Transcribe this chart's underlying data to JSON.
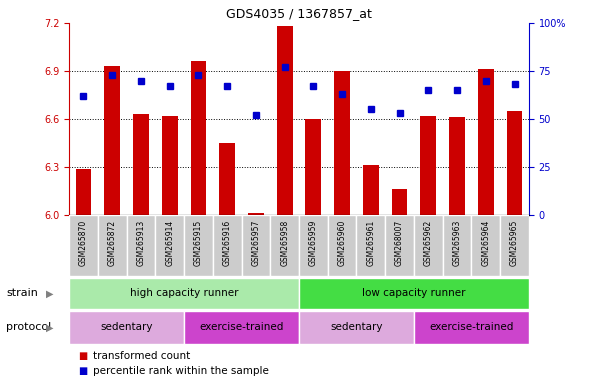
{
  "title": "GDS4035 / 1367857_at",
  "samples": [
    "GSM265870",
    "GSM265872",
    "GSM265913",
    "GSM265914",
    "GSM265915",
    "GSM265916",
    "GSM265957",
    "GSM265958",
    "GSM265959",
    "GSM265960",
    "GSM265961",
    "GSM268007",
    "GSM265962",
    "GSM265963",
    "GSM265964",
    "GSM265965"
  ],
  "bar_values": [
    6.29,
    6.93,
    6.63,
    6.62,
    6.96,
    6.45,
    6.01,
    7.18,
    6.6,
    6.9,
    6.31,
    6.16,
    6.62,
    6.61,
    6.91,
    6.65
  ],
  "dot_values": [
    62,
    73,
    70,
    67,
    73,
    67,
    52,
    77,
    67,
    63,
    55,
    53,
    65,
    65,
    70,
    68
  ],
  "ymin": 6.0,
  "ymax": 7.2,
  "yticks": [
    6.0,
    6.3,
    6.6,
    6.9,
    7.2
  ],
  "y2min": 0,
  "y2max": 100,
  "y2ticks": [
    0,
    25,
    50,
    75,
    100
  ],
  "bar_color": "#cc0000",
  "dot_color": "#0000cc",
  "strain_groups": [
    {
      "label": "high capacity runner",
      "start": 0,
      "end": 8,
      "color": "#aaeaaa"
    },
    {
      "label": "low capacity runner",
      "start": 8,
      "end": 16,
      "color": "#44dd44"
    }
  ],
  "protocol_groups": [
    {
      "label": "sedentary",
      "start": 0,
      "end": 4,
      "color": "#ddaadd"
    },
    {
      "label": "exercise-trained",
      "start": 4,
      "end": 8,
      "color": "#cc44cc"
    },
    {
      "label": "sedentary",
      "start": 8,
      "end": 12,
      "color": "#ddaadd"
    },
    {
      "label": "exercise-trained",
      "start": 12,
      "end": 16,
      "color": "#cc44cc"
    }
  ],
  "legend_items": [
    {
      "label": "transformed count",
      "color": "#cc0000"
    },
    {
      "label": "percentile rank within the sample",
      "color": "#0000cc"
    }
  ],
  "strain_label": "strain",
  "protocol_label": "protocol",
  "bg_color": "#ffffff",
  "bar_width": 0.55,
  "tick_label_color_left": "#cc0000",
  "tick_label_color_right": "#0000cc",
  "sample_cell_color": "#cccccc",
  "sample_cell_border": "#ffffff"
}
